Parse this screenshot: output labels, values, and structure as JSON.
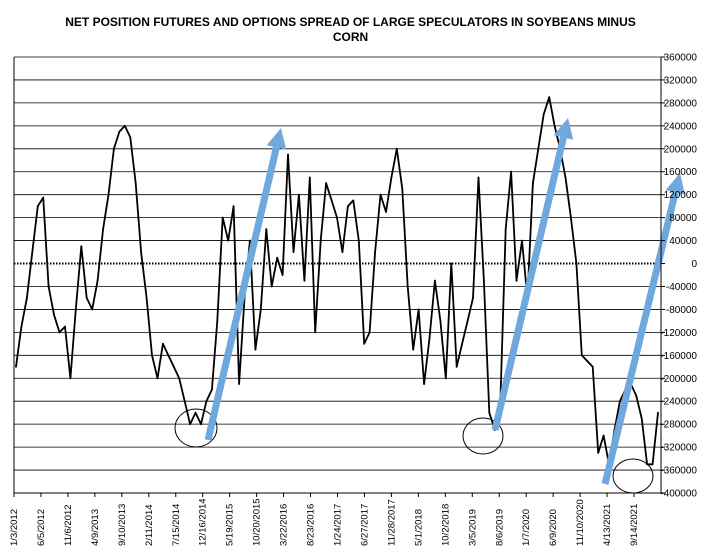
{
  "chart_data": {
    "type": "line",
    "title_line1": "NET POSITION FUTURES AND OPTIONS SPREAD OF LARGE SPECULATORS IN SOYBEANS MINUS",
    "title_line2": "CORN",
    "xlabel": "",
    "ylabel": "",
    "ylim": [
      -400000,
      360000
    ],
    "y_ticks": [
      360000,
      320000,
      280000,
      240000,
      200000,
      160000,
      120000,
      80000,
      40000,
      0,
      -40000,
      -80000,
      -120000,
      -160000,
      -200000,
      -240000,
      -280000,
      -320000,
      -360000,
      -400000
    ],
    "y_tick_labels": [
      "360000",
      "320000",
      "280000",
      "240000",
      "200000",
      "160000",
      "120000",
      "80000",
      "40000",
      "0",
      "-40000",
      "-80000",
      "-120000",
      "-160000",
      "-200000",
      "-240000",
      "-280000",
      "-320000",
      "-360000",
      "-400000"
    ],
    "x_tick_labels": [
      "1/3/2012",
      "6/5/2012",
      "11/6/2012",
      "4/9/2013",
      "9/10/2013",
      "2/11/2014",
      "7/15/2014",
      "12/16/2014",
      "5/19/2015",
      "10/20/2015",
      "3/22/2016",
      "8/23/2016",
      "1/24/2017",
      "6/27/2017",
      "11/28/2017",
      "5/1/2018",
      "10/2/2018",
      "3/5/2019",
      "8/6/2019",
      "1/7/2020",
      "6/9/2020",
      "11/10/2020",
      "4/13/2021",
      "9/14/2021"
    ],
    "grid": true,
    "zero_line": "dotted",
    "y_axis_position": "right",
    "line_color": "#000000",
    "arrow_color": "#6fa8dc",
    "series": [
      {
        "x": [
          "1/3/2012",
          "2/3/2012",
          "3/3/2012",
          "4/3/2012",
          "5/3/2012",
          "6/5/2012",
          "7/5/2012",
          "8/5/2012",
          "9/5/2012",
          "10/5/2012",
          "11/6/2012",
          "12/6/2012",
          "1/6/2013",
          "2/6/2013",
          "3/6/2013",
          "4/9/2013",
          "5/9/2013",
          "6/9/2013",
          "7/9/2013",
          "8/9/2013",
          "9/10/2013",
          "10/10/2013",
          "11/10/2013",
          "12/10/2013",
          "1/10/2014",
          "2/11/2014",
          "3/11/2014",
          "4/11/2014",
          "5/11/2014",
          "6/11/2014",
          "7/15/2014",
          "8/15/2014",
          "9/15/2014",
          "10/15/2014",
          "11/15/2014",
          "12/16/2014",
          "1/16/2015",
          "2/16/2015",
          "3/16/2015",
          "4/16/2015",
          "5/19/2015",
          "6/19/2015",
          "7/19/2015",
          "8/19/2015",
          "9/19/2015",
          "10/20/2015",
          "11/20/2015",
          "12/20/2015",
          "1/20/2016",
          "2/20/2016",
          "3/22/2016",
          "4/22/2016",
          "5/22/2016",
          "6/22/2016",
          "7/22/2016",
          "8/23/2016",
          "9/23/2016",
          "10/23/2016",
          "11/23/2016",
          "12/23/2016",
          "1/24/2017",
          "2/24/2017",
          "3/24/2017",
          "4/24/2017",
          "5/24/2017",
          "6/27/2017",
          "7/27/2017",
          "8/27/2017",
          "9/27/2017",
          "10/27/2017",
          "11/28/2017",
          "12/28/2017",
          "1/28/2018",
          "2/28/2018",
          "3/28/2018",
          "5/1/2018",
          "6/1/2018",
          "7/1/2018",
          "8/1/2018",
          "9/1/2018",
          "10/2/2018",
          "11/2/2018",
          "12/2/2018",
          "1/2/2019",
          "2/2/2019",
          "3/5/2019",
          "4/5/2019",
          "5/5/2019",
          "6/5/2019",
          "7/5/2019",
          "8/6/2019",
          "9/6/2019",
          "10/6/2019",
          "11/6/2019",
          "12/6/2019",
          "1/7/2020",
          "2/7/2020",
          "3/7/2020",
          "4/7/2020",
          "5/7/2020",
          "6/9/2020",
          "7/9/2020",
          "8/9/2020",
          "9/9/2020",
          "10/9/2020",
          "11/10/2020",
          "12/10/2020",
          "1/10/2021",
          "2/10/2021",
          "3/10/2021",
          "4/13/2021",
          "5/13/2021",
          "6/13/2021",
          "7/13/2021",
          "8/13/2021",
          "9/14/2021",
          "10/14/2021",
          "11/14/2021",
          "12/14/2021"
        ],
        "values": [
          -180000,
          -110000,
          -60000,
          20000,
          100000,
          115000,
          -40000,
          -90000,
          -120000,
          -110000,
          -200000,
          -80000,
          30000,
          -60000,
          -80000,
          -30000,
          60000,
          120000,
          200000,
          230000,
          240000,
          220000,
          140000,
          20000,
          -60000,
          -160000,
          -200000,
          -140000,
          -160000,
          -180000,
          -200000,
          -240000,
          -280000,
          -260000,
          -280000,
          -240000,
          -220000,
          -100000,
          80000,
          40000,
          100000,
          -210000,
          -60000,
          40000,
          -150000,
          -80000,
          60000,
          -40000,
          10000,
          -20000,
          190000,
          20000,
          120000,
          -30000,
          150000,
          -120000,
          40000,
          140000,
          110000,
          80000,
          20000,
          100000,
          110000,
          40000,
          -140000,
          -120000,
          20000,
          120000,
          90000,
          150000,
          200000,
          130000,
          -40000,
          -150000,
          -80000,
          -210000,
          -130000,
          -30000,
          -100000,
          -200000,
          0,
          -180000,
          -140000,
          -100000,
          -60000,
          150000,
          -30000,
          -260000,
          -290000,
          -250000,
          60000,
          160000,
          -30000,
          40000,
          -60000,
          140000,
          200000,
          260000,
          290000,
          240000,
          200000,
          150000,
          80000,
          0,
          -160000,
          -170000,
          -180000,
          -330000,
          -300000,
          -350000,
          -290000,
          -240000,
          -220000,
          -210000,
          -230000,
          -270000,
          -350000,
          -350000,
          -260000
        ]
      }
    ],
    "annotations": {
      "circles": [
        "Dec 2014 trough",
        "Jun 2019 trough",
        "late 2021 trough"
      ],
      "arrows": [
        "Dec 2014 to Mar 2016",
        "Jun 2019 to Nov 2020",
        "late 2021 rising"
      ]
    }
  }
}
